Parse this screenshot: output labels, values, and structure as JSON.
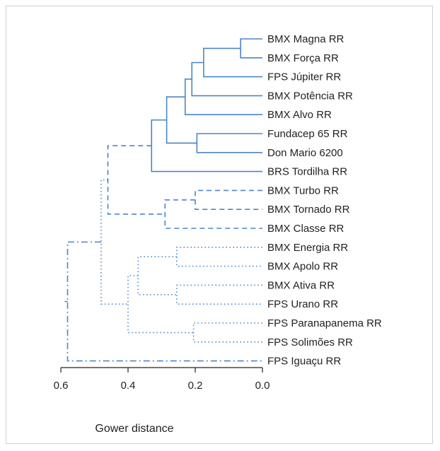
{
  "chart_data": {
    "type": "dendrogram",
    "xlabel": "Gower distance",
    "xlim": [
      0.0,
      0.6
    ],
    "xticks": [
      "0.6",
      "0.4",
      "0.2",
      "0.0"
    ],
    "xtick_values": [
      0.6,
      0.4,
      0.2,
      0.0
    ],
    "leaves": [
      "BMX Magna RR",
      "BMX Força RR",
      "FPS Júpiter RR",
      "BMX Potência RR",
      "BMX Alvo RR",
      "Fundacep 65 RR",
      "Don Mario 6200",
      "BRS Tordilha RR",
      "BMX Turbo RR",
      "BMX Tornado RR",
      "BMX Classe RR",
      "BMX Energia RR",
      "BMX Apolo RR",
      "BMX Ativa RR",
      "FPS Urano RR",
      "FPS Paranapanema RR",
      "FPS Solimões RR",
      "FPS Iguaçu RR"
    ],
    "leaf_groups": [
      1,
      1,
      1,
      1,
      1,
      1,
      1,
      1,
      2,
      2,
      2,
      3,
      3,
      3,
      3,
      3,
      3,
      4
    ],
    "group_styles": {
      "1": "solid",
      "2": "dashed",
      "3": "dotted",
      "4": "dashdot"
    },
    "line_color": "#4a86c8",
    "merges": [
      {
        "a": "L0",
        "b": "L1",
        "h": 0.065,
        "g": 1
      },
      {
        "a": "M0",
        "b": "L2",
        "h": 0.175,
        "g": 1
      },
      {
        "a": "M1",
        "b": "L3",
        "h": 0.21,
        "g": 1
      },
      {
        "a": "M2",
        "b": "L4",
        "h": 0.23,
        "g": 1
      },
      {
        "a": "L5",
        "b": "L6",
        "h": 0.195,
        "g": 1
      },
      {
        "a": "M3",
        "b": "M4",
        "h": 0.285,
        "g": 1
      },
      {
        "a": "M5",
        "b": "L7",
        "h": 0.33,
        "g": 1
      },
      {
        "a": "L8",
        "b": "L9",
        "h": 0.2,
        "g": 2
      },
      {
        "a": "M7",
        "b": "L10",
        "h": 0.29,
        "g": 2
      },
      {
        "a": "M6",
        "b": "M8",
        "h": 0.46,
        "g": 2
      },
      {
        "a": "L11",
        "b": "L12",
        "h": 0.255,
        "g": 3
      },
      {
        "a": "L13",
        "b": "L14",
        "h": 0.255,
        "g": 3
      },
      {
        "a": "M10",
        "b": "M11",
        "h": 0.37,
        "g": 3
      },
      {
        "a": "L15",
        "b": "L16",
        "h": 0.205,
        "g": 3
      },
      {
        "a": "M12",
        "b": "M13",
        "h": 0.4,
        "g": 3
      },
      {
        "a": "M9",
        "b": "M14",
        "h": 0.48,
        "g": 3
      },
      {
        "a": "M15",
        "b": "L17",
        "h": 0.58,
        "g": 4
      }
    ]
  }
}
